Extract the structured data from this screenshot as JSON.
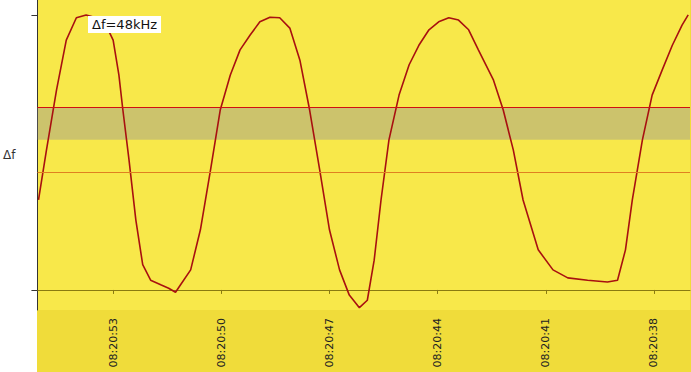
{
  "chart_data": {
    "type": "line",
    "title": "Δf=48kHz",
    "y_label": "Δf",
    "x": [
      55.07,
      54.85,
      54.57,
      54.3,
      54.02,
      53.75,
      53.47,
      53.2,
      53.0,
      52.84,
      52.73,
      52.56,
      52.37,
      52.18,
      51.96,
      51.68,
      51.46,
      51.27,
      51.13,
      50.85,
      50.58,
      50.3,
      50.03,
      49.75,
      49.48,
      49.2,
      48.93,
      48.65,
      48.38,
      48.1,
      47.82,
      47.55,
      47.27,
      47.0,
      46.72,
      46.45,
      46.17,
      45.95,
      45.76,
      45.57,
      45.35,
      45.07,
      44.79,
      44.52,
      44.24,
      43.97,
      43.69,
      43.42,
      43.14,
      42.87,
      42.45,
      42.18,
      41.9,
      41.63,
      41.21,
      40.8,
      40.39,
      39.84,
      39.29,
      39.01,
      38.79,
      38.6,
      38.32,
      38.05,
      37.77,
      37.49,
      37.22,
      37.05
    ],
    "values": [
      15.7,
      24.4,
      34.9,
      43.6,
      47.5,
      48.0,
      47.5,
      46.2,
      43.6,
      37.5,
      31.4,
      22.7,
      12.2,
      4.4,
      1.7,
      0.9,
      0.3,
      -0.4,
      0.9,
      3.5,
      10.5,
      20.9,
      31.4,
      37.5,
      41.9,
      44.5,
      46.8,
      47.6,
      47.5,
      45.7,
      40.1,
      31.4,
      20.9,
      10.5,
      3.5,
      -0.9,
      -3.1,
      -1.8,
      5.2,
      15.7,
      26.2,
      34.0,
      39.3,
      42.7,
      45.4,
      46.8,
      47.5,
      47.1,
      45.4,
      41.9,
      36.6,
      31.4,
      24.4,
      15.7,
      7.0,
      3.5,
      2.1,
      1.7,
      1.4,
      1.7,
      7.0,
      15.7,
      26.2,
      34.0,
      38.4,
      42.7,
      46.2,
      48.0
    ],
    "color": "#a81010",
    "xlim": [
      55.1,
      37.0
    ],
    "xticks": [
      {
        "value": 53,
        "label": "08:20:53"
      },
      {
        "value": 50,
        "label": "08:20:50"
      },
      {
        "value": 47,
        "label": "08:20:47"
      },
      {
        "value": 44,
        "label": "08:20:44"
      },
      {
        "value": 41,
        "label": "08:20:41"
      },
      {
        "value": 38,
        "label": "08:20:38"
      }
    ],
    "ylim": [
      -3.5,
      50.6
    ],
    "yticks": [
      0,
      48
    ],
    "tick_labels": "x",
    "grid": false,
    "reference_lines": [
      {
        "value": 31.9,
        "color": "#d01010"
      },
      {
        "value": 20.6,
        "color": "#e08020"
      }
    ],
    "band": [
      26.2,
      31.9
    ]
  }
}
